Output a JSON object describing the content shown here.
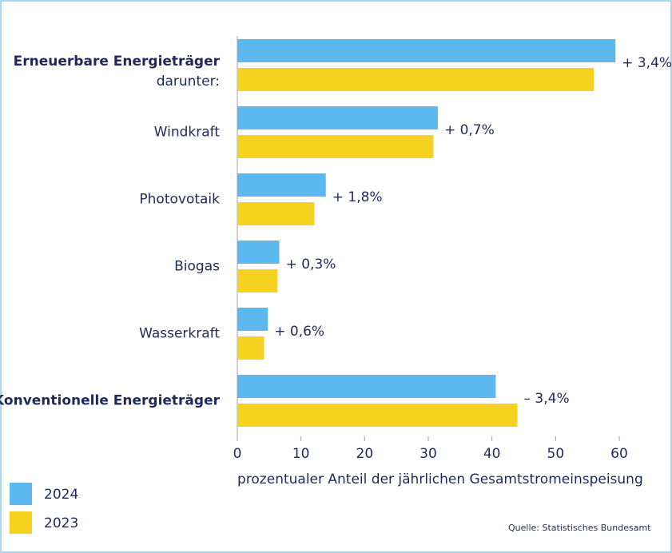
{
  "chart_data": {
    "type": "hbar",
    "categories": [
      "Erneuerbare Energieträger",
      "Windkraft",
      "Photovotaik",
      "Biogas",
      "Wasserkraft",
      "Konventionelle Energieträger"
    ],
    "group_note": "darunter:",
    "series": [
      {
        "name": "2024",
        "color": "#5cb8ef",
        "values": [
          59.4,
          31.5,
          13.9,
          6.6,
          4.8,
          40.6
        ]
      },
      {
        "name": "2023",
        "color": "#f4d21f",
        "values": [
          56,
          30.8,
          12.1,
          6.3,
          4.2,
          44
        ]
      }
    ],
    "annotations": [
      "+ 3,4%",
      "+ 0,7%",
      "+ 1,8%",
      "+ 0,3%",
      "+ 0,6%",
      "– 3,4%"
    ],
    "xlim": [
      0,
      60
    ],
    "xticks": [
      0,
      10,
      20,
      30,
      40,
      50,
      60
    ],
    "xlabel": "prozentualer Anteil der jährlichen Gesamtstromeinspeisung",
    "source": "Quelle: Statistisches Bundesamt",
    "legend": "bottom-left"
  }
}
